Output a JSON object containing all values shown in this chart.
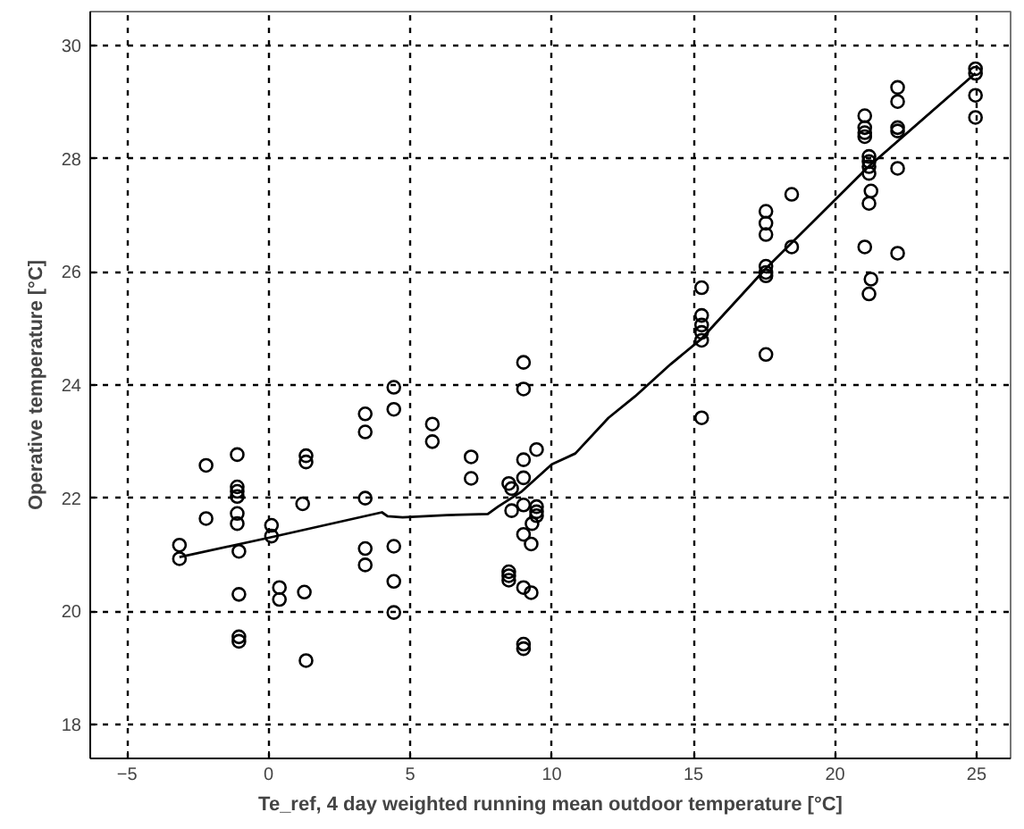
{
  "chart_data": {
    "type": "scatter",
    "xlabel": "Te_ref, 4 day weighted running mean outdoor temperature [°C]",
    "ylabel": "Operative temperature [°C]",
    "xlim": [
      -6.3,
      26.2
    ],
    "ylim": [
      17.4,
      30.6
    ],
    "xticks": [
      -5,
      0,
      5,
      10,
      15,
      20,
      25
    ],
    "yticks": [
      18,
      20,
      22,
      24,
      26,
      28,
      30
    ],
    "grid": true,
    "series": [
      {
        "marker": "circle",
        "color": "#000000",
        "x": [
          -3.15,
          -3.15,
          -2.21,
          -2.21,
          -1.11,
          -1.11,
          -1.11,
          -1.11,
          -1.11,
          -1.11,
          -1.05,
          -1.05,
          -1.05,
          -1.05,
          0.1,
          0.1,
          0.38,
          0.38,
          1.32,
          1.32,
          1.2,
          1.26,
          1.32,
          3.41,
          3.41,
          3.41,
          3.41,
          3.41,
          4.42,
          4.42,
          4.42,
          4.42,
          4.42,
          5.78,
          5.78,
          7.15,
          7.15,
          9.0,
          9.0,
          9.46,
          9.0,
          9.0,
          8.48,
          8.58,
          8.58,
          9.0,
          9.46,
          9.46,
          9.46,
          9.3,
          9.0,
          9.27,
          8.48,
          8.48,
          8.48,
          9.0,
          9.27,
          9.0,
          9.0,
          15.29,
          15.29,
          15.29,
          15.29,
          15.29,
          15.29,
          17.56,
          17.56,
          17.56,
          17.56,
          17.56,
          17.56,
          18.47,
          18.47,
          17.56,
          21.05,
          21.05,
          21.05,
          21.05,
          21.2,
          21.2,
          21.2,
          21.2,
          21.27,
          21.2,
          21.05,
          21.27,
          21.2,
          22.21,
          22.21,
          22.21,
          22.21,
          22.21,
          22.21,
          24.96,
          24.96,
          24.96,
          24.96
        ],
        "values": [
          21.17,
          20.93,
          22.58,
          21.64,
          22.77,
          22.2,
          22.12,
          22.03,
          21.73,
          21.55,
          21.06,
          20.3,
          19.55,
          19.47,
          21.52,
          21.33,
          20.42,
          20.21,
          22.75,
          22.64,
          21.9,
          20.34,
          19.13,
          23.49,
          23.17,
          22.0,
          21.11,
          20.82,
          23.96,
          23.57,
          21.15,
          20.53,
          19.98,
          23.31,
          23.0,
          22.73,
          22.35,
          24.4,
          23.93,
          22.86,
          22.68,
          22.36,
          22.26,
          22.17,
          21.78,
          21.88,
          21.85,
          21.76,
          21.69,
          21.55,
          21.36,
          21.19,
          20.7,
          20.63,
          20.55,
          20.42,
          20.33,
          19.42,
          19.34,
          25.72,
          25.23,
          25.06,
          24.93,
          24.79,
          23.42,
          26.1,
          25.99,
          25.93,
          27.07,
          26.86,
          26.66,
          27.37,
          26.44,
          24.54,
          28.76,
          28.55,
          28.46,
          28.39,
          28.04,
          27.95,
          27.86,
          27.74,
          27.43,
          27.21,
          26.44,
          25.87,
          25.61,
          29.26,
          29.01,
          28.55,
          28.49,
          27.83,
          26.33,
          29.59,
          29.51,
          29.12,
          28.73
        ]
      },
      {
        "type": "line",
        "marker": "none",
        "color": "#000000",
        "line_style": "solid",
        "x": [
          -3.15,
          0,
          4.0,
          4.2,
          4.73,
          6.3,
          7.74,
          8.1,
          8.94,
          10.0,
          10.83,
          12.0,
          12.94,
          14.2,
          15.29,
          17.56,
          21.14,
          24.96
        ],
        "values": [
          20.96,
          21.3,
          21.75,
          21.68,
          21.66,
          21.7,
          21.72,
          21.85,
          22.12,
          22.6,
          22.79,
          23.42,
          23.8,
          24.37,
          24.82,
          26.06,
          27.84,
          29.51
        ]
      }
    ]
  }
}
